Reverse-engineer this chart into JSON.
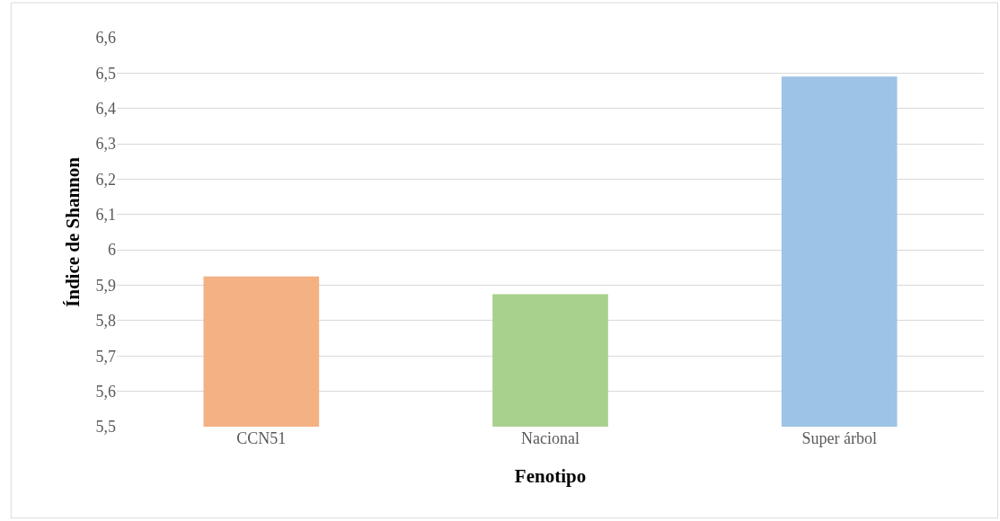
{
  "chart_data": {
    "type": "bar",
    "xlabel": "Fenotipo",
    "ylabel": "Índice de Shannon",
    "categories": [
      "CCN51",
      "Nacional",
      "Super árbol"
    ],
    "values": [
      5.925,
      5.875,
      6.49
    ],
    "colors": [
      "#f4b183",
      "#a9d18e",
      "#9dc3e6"
    ],
    "ylim": [
      5.5,
      6.6
    ],
    "yticks": [
      {
        "value": 5.5,
        "label": "5,5"
      },
      {
        "value": 5.6,
        "label": "5,6"
      },
      {
        "value": 5.7,
        "label": "5,7"
      },
      {
        "value": 5.8,
        "label": "5,8"
      },
      {
        "value": 5.9,
        "label": "5,9"
      },
      {
        "value": 6.0,
        "label": "6"
      },
      {
        "value": 6.1,
        "label": "6,1"
      },
      {
        "value": 6.2,
        "label": "6,2"
      },
      {
        "value": 6.3,
        "label": "6,3"
      },
      {
        "value": 6.4,
        "label": "6,4"
      },
      {
        "value": 6.5,
        "label": "6,5"
      },
      {
        "value": 6.6,
        "label": "6,6"
      }
    ],
    "grid": "y"
  }
}
